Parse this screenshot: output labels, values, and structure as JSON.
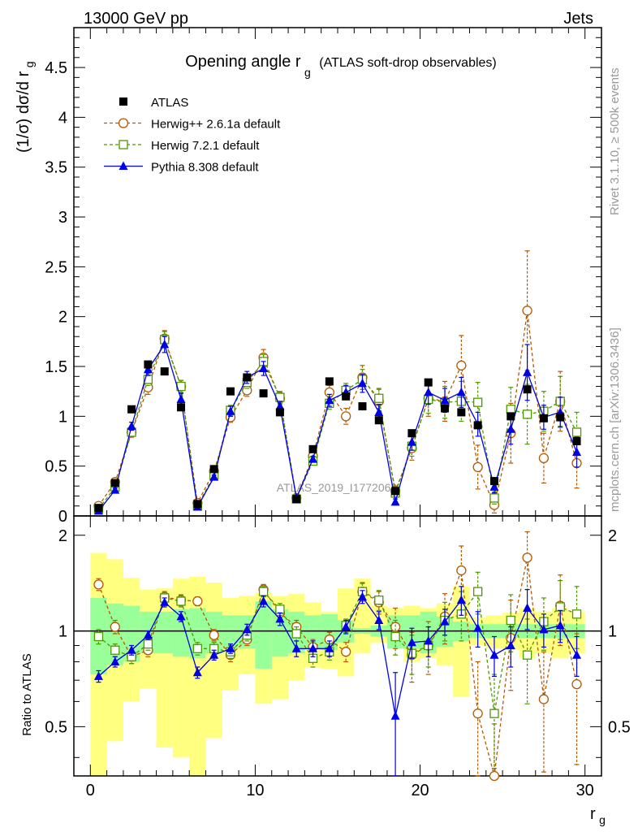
{
  "header": {
    "left": "13000 GeV pp",
    "right": "Jets"
  },
  "side_labels": {
    "rivet": "Rivet 3.1.10, ≥ 500k events",
    "mcplots": "mcplots.cern.ch [arXiv:1306.3436]"
  },
  "chart_data": [
    {
      "type": "scatter",
      "panel": "main",
      "title": "Opening angle r",
      "title_sub": "g",
      "title_suffix": "(ATLAS soft-drop observables)",
      "ylabel": "(1/σ) dσ/d r",
      "ylabel_sub": "g",
      "xlabel": "r",
      "xlabel_sub": "g",
      "xlim": [
        -1,
        31
      ],
      "ylim": [
        0,
        4.9
      ],
      "x_ticks": [
        0,
        10,
        20,
        30
      ],
      "y_ticks": [
        0,
        0.5,
        1,
        1.5,
        2,
        2.5,
        3,
        3.5,
        4,
        4.5
      ],
      "y_tick_labels": [
        "0",
        "0.5",
        "1",
        "1.5",
        "2",
        "2.5",
        "3",
        "3.5",
        "4",
        "4.5"
      ],
      "watermark": "ATLAS_2019_I1772062",
      "legend_position": "top-left",
      "x": [
        0.5,
        1.5,
        2.5,
        3.5,
        4.5,
        5.5,
        6.5,
        7.5,
        8.5,
        9.5,
        10.5,
        11.5,
        12.5,
        13.5,
        14.5,
        15.5,
        16.5,
        17.5,
        18.5,
        19.5,
        20.5,
        21.5,
        22.5,
        23.5,
        24.5,
        25.5,
        26.5,
        27.5,
        28.5,
        29.5
      ],
      "series": [
        {
          "name": "ATLAS",
          "color": "#000000",
          "marker": "square-filled",
          "values": [
            0.08,
            0.33,
            1.07,
            1.52,
            1.45,
            1.09,
            0.12,
            0.47,
            1.25,
            1.39,
            1.23,
            1.04,
            0.17,
            0.67,
            1.35,
            1.2,
            1.1,
            0.96,
            0.25,
            0.83,
            1.34,
            1.08,
            1.04,
            0.91,
            0.35,
            1.0,
            1.27,
            0.98,
            0.99,
            0.75
          ]
        },
        {
          "name": "Herwig++ 2.6.1a default",
          "color": "#b35900",
          "marker": "circle-open",
          "values": [
            0.1,
            0.34,
            0.84,
            1.29,
            1.78,
            1.3,
            0.13,
            0.45,
            0.99,
            1.26,
            1.59,
            1.18,
            0.18,
            0.6,
            1.24,
            1.0,
            1.39,
            1.15,
            0.25,
            0.68,
            1.18,
            1.15,
            1.51,
            0.49,
            0.11,
            0.83,
            2.06,
            0.58,
            1.15,
            0.53
          ],
          "err": [
            0.02,
            0.03,
            0.05,
            0.07,
            0.08,
            0.06,
            0.01,
            0.03,
            0.05,
            0.06,
            0.08,
            0.06,
            0.01,
            0.04,
            0.07,
            0.08,
            0.12,
            0.12,
            0.05,
            0.12,
            0.18,
            0.2,
            0.3,
            0.22,
            0.08,
            0.3,
            0.6,
            0.25,
            0.3,
            0.25
          ]
        },
        {
          "name": "Herwig 7.2.1 default",
          "color": "#4d9900",
          "marker": "square-open",
          "values": [
            0.07,
            0.29,
            0.84,
            1.37,
            1.77,
            1.3,
            0.1,
            0.41,
            1.06,
            1.34,
            1.55,
            1.19,
            0.17,
            0.55,
            1.13,
            1.26,
            1.37,
            1.18,
            0.23,
            0.7,
            1.17,
            1.14,
            1.15,
            1.14,
            0.18,
            1.07,
            1.02,
            1.05,
            1.15,
            0.84
          ],
          "err": [
            0.01,
            0.03,
            0.04,
            0.06,
            0.08,
            0.06,
            0.01,
            0.03,
            0.05,
            0.06,
            0.07,
            0.06,
            0.01,
            0.03,
            0.06,
            0.07,
            0.1,
            0.1,
            0.04,
            0.1,
            0.14,
            0.16,
            0.2,
            0.2,
            0.06,
            0.22,
            0.3,
            0.2,
            0.25,
            0.2
          ]
        },
        {
          "name": "Pythia 8.308 default",
          "color": "#0000e6",
          "marker": "triangle-filled",
          "values": [
            0.05,
            0.26,
            0.9,
            1.47,
            1.72,
            1.17,
            0.09,
            0.39,
            1.05,
            1.39,
            1.48,
            1.1,
            0.18,
            0.57,
            1.16,
            1.24,
            1.33,
            1.04,
            0.14,
            0.74,
            1.24,
            1.16,
            1.24,
            0.92,
            0.29,
            0.87,
            1.44,
            0.99,
            1.04,
            0.64
          ],
          "err": [
            0.01,
            0.02,
            0.04,
            0.06,
            0.08,
            0.06,
            0.01,
            0.02,
            0.05,
            0.06,
            0.07,
            0.05,
            0.01,
            0.03,
            0.06,
            0.07,
            0.09,
            0.08,
            0.03,
            0.08,
            0.12,
            0.12,
            0.15,
            0.12,
            0.06,
            0.15,
            0.28,
            0.12,
            0.15,
            0.15
          ]
        }
      ]
    },
    {
      "type": "scatter",
      "panel": "ratio",
      "ylabel": "Ratio to ATLAS",
      "xlim": [
        -1,
        31
      ],
      "ylim": [
        0.35,
        2.3
      ],
      "y_ticks": [
        0.5,
        1,
        2
      ],
      "y_tick_labels": [
        "0.5",
        "1",
        "2"
      ],
      "x_ticks": [
        0,
        10,
        20,
        30
      ],
      "x_tick_labels": [
        "0",
        "10",
        "20",
        "30"
      ],
      "data_band_inner": {
        "color": "#99ff99",
        "lower": [
          0.73,
          0.78,
          0.8,
          0.85,
          0.85,
          0.83,
          0.82,
          0.85,
          0.88,
          0.88,
          0.76,
          0.83,
          0.85,
          0.88,
          0.87,
          0.92,
          0.98,
          0.96,
          0.88,
          0.88,
          0.85,
          0.89,
          0.93,
          0.95,
          0.95,
          0.95,
          0.95,
          0.95,
          0.95,
          0.95
        ],
        "upper": [
          1.27,
          1.22,
          1.2,
          1.15,
          1.15,
          1.17,
          1.18,
          1.15,
          1.12,
          1.12,
          1.24,
          1.17,
          1.15,
          1.12,
          1.13,
          1.08,
          1.02,
          1.04,
          1.12,
          1.12,
          1.15,
          1.11,
          1.07,
          1.05,
          1.05,
          1.05,
          1.05,
          1.05,
          1.05,
          1.05
        ]
      },
      "data_band_outer": {
        "color": "#ffff80",
        "lower": [
          0.35,
          0.45,
          0.6,
          0.66,
          0.43,
          0.4,
          0.35,
          0.46,
          0.65,
          0.73,
          0.59,
          0.61,
          0.7,
          0.77,
          0.76,
          0.72,
          0.85,
          0.92,
          0.88,
          0.8,
          0.82,
          0.78,
          0.62,
          0.9,
          0.88,
          0.87,
          0.82,
          0.85,
          0.82,
          0.85
        ],
        "upper": [
          1.76,
          1.68,
          1.47,
          1.35,
          1.36,
          1.46,
          1.48,
          1.42,
          1.27,
          1.29,
          1.32,
          1.29,
          1.31,
          1.23,
          1.15,
          1.36,
          1.46,
          1.2,
          1.18,
          1.2,
          1.18,
          1.22,
          1.38,
          1.1,
          1.12,
          1.14,
          1.18,
          1.15,
          1.18,
          1.15
        ]
      },
      "series": [
        {
          "name": "Herwig++ 2.6.1a default",
          "color": "#b35900",
          "marker": "circle-open",
          "values": [
            1.4,
            1.03,
            0.83,
            0.87,
            1.28,
            1.25,
            1.24,
            0.97,
            0.84,
            0.94,
            1.35,
            1.14,
            1.03,
            0.89,
            0.94,
            0.86,
            1.33,
            1.23,
            1.03,
            0.84,
            0.9,
            1.11,
            1.55,
            0.55,
            0.31,
            0.95,
            1.7,
            0.61,
            1.2,
            0.68
          ],
          "err": [
            0.06,
            0.05,
            0.04,
            0.04,
            0.05,
            0.05,
            0.04,
            0.04,
            0.04,
            0.04,
            0.05,
            0.05,
            0.05,
            0.05,
            0.05,
            0.06,
            0.09,
            0.1,
            0.15,
            0.15,
            0.17,
            0.2,
            0.3,
            0.25,
            0.2,
            0.3,
            0.35,
            0.25,
            0.3,
            0.3
          ]
        },
        {
          "name": "Herwig 7.2.1 default",
          "color": "#4d9900",
          "marker": "square-open",
          "values": [
            0.96,
            0.87,
            0.83,
            0.91,
            1.27,
            1.24,
            0.88,
            0.88,
            0.86,
            0.97,
            1.33,
            1.17,
            0.98,
            0.82,
            0.86,
            1.04,
            1.33,
            1.25,
            0.96,
            0.85,
            0.9,
            1.08,
            1.13,
            1.33,
            0.55,
            1.08,
            0.84,
            1.07,
            1.19,
            1.13
          ],
          "err": [
            0.05,
            0.04,
            0.04,
            0.04,
            0.05,
            0.05,
            0.04,
            0.04,
            0.04,
            0.04,
            0.05,
            0.05,
            0.05,
            0.05,
            0.05,
            0.05,
            0.08,
            0.09,
            0.12,
            0.12,
            0.13,
            0.15,
            0.2,
            0.2,
            0.18,
            0.22,
            0.25,
            0.2,
            0.25,
            0.25
          ]
        },
        {
          "name": "Pythia 8.308 default",
          "color": "#0000e6",
          "marker": "triangle-filled",
          "values": [
            0.72,
            0.8,
            0.87,
            0.97,
            1.23,
            1.11,
            0.74,
            0.84,
            0.88,
            1.01,
            1.24,
            1.09,
            0.88,
            0.88,
            0.88,
            1.03,
            1.28,
            1.08,
            0.54,
            0.92,
            0.93,
            1.07,
            1.25,
            1.02,
            0.84,
            0.9,
            1.18,
            1.01,
            1.04,
            0.84
          ],
          "err": [
            0.03,
            0.03,
            0.03,
            0.03,
            0.04,
            0.04,
            0.03,
            0.03,
            0.03,
            0.04,
            0.05,
            0.05,
            0.05,
            0.05,
            0.05,
            0.05,
            0.06,
            0.07,
            0.2,
            0.1,
            0.1,
            0.1,
            0.13,
            0.13,
            0.12,
            0.13,
            0.17,
            0.12,
            0.12,
            0.12
          ]
        }
      ]
    }
  ]
}
